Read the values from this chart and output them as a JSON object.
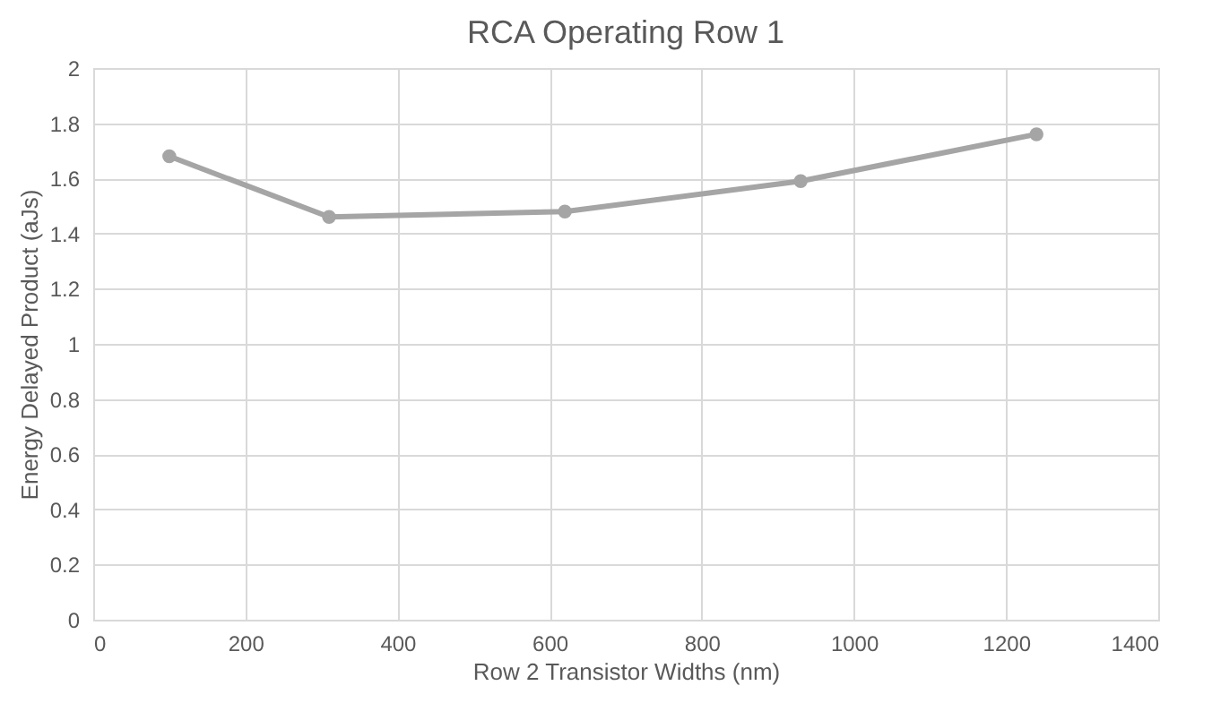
{
  "chart_data": {
    "type": "line",
    "title": "RCA Operating Row 1",
    "xlabel": "Row 2 Transistor Widths (nm)",
    "ylabel": "Energy Delayed Product (aJs)",
    "x": [
      100,
      310,
      620,
      930,
      1240
    ],
    "series": [
      {
        "color": "#a5a5a5",
        "values": [
          1.68,
          1.46,
          1.48,
          1.59,
          1.76
        ]
      }
    ],
    "xlim": [
      0,
      1400
    ],
    "xticks": [
      0,
      200,
      400,
      600,
      800,
      1000,
      1200,
      1400
    ],
    "ylim": [
      0,
      2
    ],
    "yticks": [
      0,
      0.2,
      0.4,
      0.6,
      0.8,
      1,
      1.2,
      1.4,
      1.6,
      1.8,
      2
    ],
    "grid": true,
    "marker": "circle",
    "line_style": "solid"
  }
}
